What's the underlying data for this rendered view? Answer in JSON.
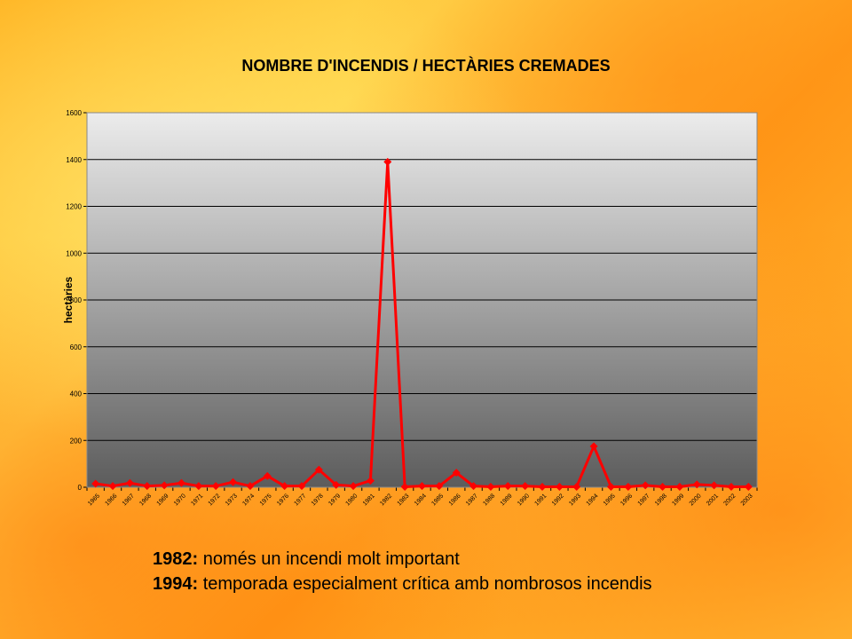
{
  "chart_data": {
    "type": "line",
    "title": "NOMBRE D'INCENDIS / HECTÀRIES CREMADES",
    "ylabel": "hectàries",
    "xlabel": "",
    "ylim": [
      0,
      1600
    ],
    "yticks": [
      0,
      200,
      400,
      600,
      800,
      1000,
      1200,
      1400,
      1600
    ],
    "ytick_labels": [
      "0",
      "200",
      "400",
      "600",
      "800",
      "1000",
      "1200",
      "1400",
      "1600"
    ],
    "grid": true,
    "legend": false,
    "categories": [
      "1965",
      "1966",
      "1967",
      "1968",
      "1969",
      "1970",
      "1971",
      "1972",
      "1973",
      "1974",
      "1975",
      "1976",
      "1977",
      "1978",
      "1979",
      "1980",
      "1981",
      "1982",
      "1983",
      "1984",
      "1985",
      "1986",
      "1987",
      "1988",
      "1989",
      "1990",
      "1991",
      "1992",
      "1993",
      "1994",
      "1995",
      "1996",
      "1997",
      "1998",
      "1999",
      "2000",
      "2001",
      "2002",
      "2003"
    ],
    "category_labels": [
      "1965",
      "1966",
      "1967",
      "1968",
      "1969",
      "1970",
      "1971",
      "1972",
      "1973",
      "1974",
      "1975",
      "1976",
      "1977",
      "1978",
      "1979",
      "1980",
      "1981",
      "1982",
      "1983",
      "1984",
      "1985",
      "1986",
      "1987",
      "1988",
      "1989",
      "1990",
      "1991",
      "1992",
      "1993",
      "1994",
      "1995",
      "1996",
      "1997",
      "1998",
      "1999",
      "2000",
      "2001",
      "2002",
      "2003"
    ],
    "series": [
      {
        "values": [
          15,
          5,
          18,
          5,
          8,
          18,
          5,
          5,
          22,
          5,
          48,
          5,
          5,
          75,
          10,
          5,
          28,
          1390,
          2,
          5,
          5,
          62,
          5,
          2,
          5,
          5,
          2,
          2,
          2,
          175,
          2,
          2,
          8,
          2,
          2,
          12,
          8,
          2,
          2
        ],
        "color": "#ff0000"
      }
    ],
    "colors": {
      "line": "#ff0000",
      "plot_top": "#ececec",
      "plot_bottom": "#5c5c5c"
    }
  },
  "notes": [
    {
      "year": "1982:",
      "text": "només un incendi molt important"
    },
    {
      "year": "1994:",
      "text": "temporada especialment crítica amb nombrosos incendis"
    }
  ]
}
